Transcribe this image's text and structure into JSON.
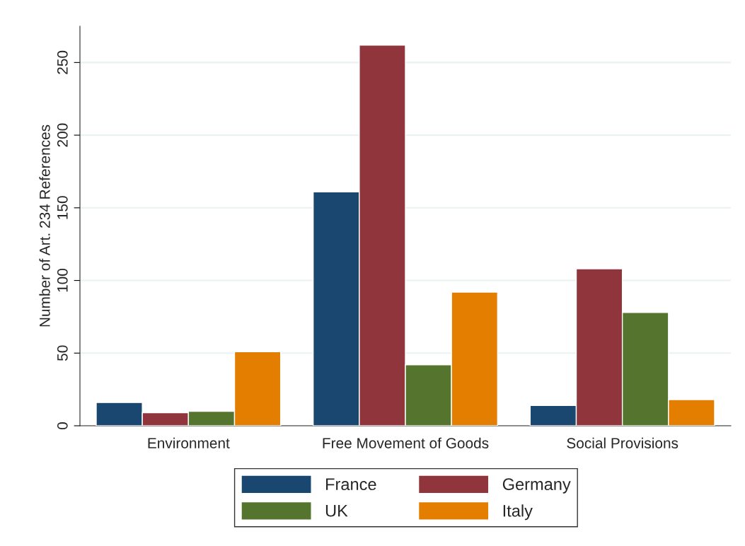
{
  "chart_data": {
    "type": "bar",
    "ylabel": "Number of Art. 234 References",
    "categories": [
      "Environment",
      "Free Movement of Goods",
      "Social Provisions"
    ],
    "series": [
      {
        "name": "France",
        "color": "#1a476f",
        "values": [
          16,
          161,
          14
        ]
      },
      {
        "name": "Germany",
        "color": "#90353b",
        "values": [
          9,
          262,
          108
        ]
      },
      {
        "name": "UK",
        "color": "#55752f",
        "values": [
          10,
          42,
          78
        ]
      },
      {
        "name": "Italy",
        "color": "#e37e00",
        "values": [
          51,
          92,
          18
        ]
      }
    ],
    "ylim": [
      0,
      275
    ],
    "yticks": [
      0,
      50,
      100,
      150,
      200,
      250
    ],
    "grid": "y",
    "legend": "bottom"
  }
}
